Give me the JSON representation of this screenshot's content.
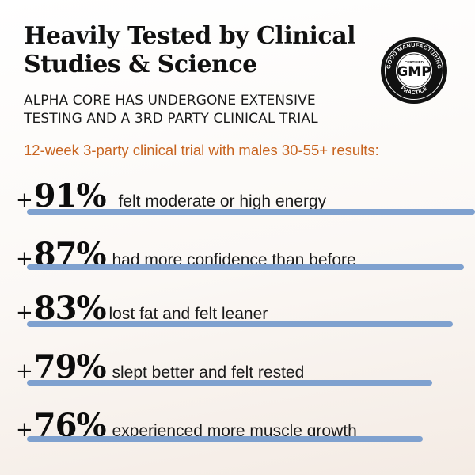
{
  "headline": {
    "line1": "Heavily Tested by Clinical",
    "line2": "Studies & Science"
  },
  "subhead": {
    "line1": "ALPHA CORE HAS UNDERGONE EXTENSIVE",
    "line2": "TESTING AND A 3RD PARTY CLINICAL TRIAL"
  },
  "badge": {
    "center": "GMP",
    "top_arc": "GOOD MANUFACTURING",
    "bottom_arc": "PRACTICE",
    "small": "CERTIFIED"
  },
  "trial_title": "12-week 3-party clinical trial with males 30-55+ results:",
  "stats": [
    {
      "value": "91%",
      "prefix": "+",
      "label": "felt moderate or high energy"
    },
    {
      "value": "87%",
      "prefix": "+",
      "label": "had more confidence than before"
    },
    {
      "value": "83%",
      "prefix": "+",
      "label": "lost fat and felt leaner"
    },
    {
      "value": "79%",
      "prefix": "+",
      "label": "slept better and felt rested"
    },
    {
      "value": "76%",
      "prefix": "+",
      "label": "experienced more muscle growth"
    }
  ],
  "colors": {
    "accent_orange": "#c86420",
    "bar_blue": "#7fa1cf",
    "text": "#111111"
  }
}
